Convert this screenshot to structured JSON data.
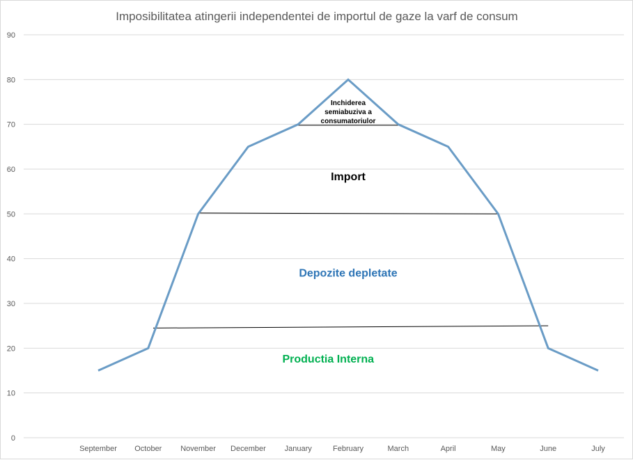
{
  "chart_data": {
    "type": "line",
    "title": "Imposibilitatea atingerii independentei de importul de gaze la varf de consum",
    "xlabel": "",
    "ylabel": "",
    "categories": [
      "September",
      "October",
      "November",
      "December",
      "January",
      "February",
      "March",
      "April",
      "May",
      "June",
      "July"
    ],
    "series": [
      {
        "values": [
          15,
          20,
          50,
          65,
          70,
          80,
          70,
          65,
          50,
          20,
          15
        ],
        "color": "#6a9cc6"
      }
    ],
    "ylim": [
      0,
      90
    ],
    "yticks": [
      0,
      10,
      20,
      30,
      40,
      50,
      60,
      70,
      80,
      90
    ],
    "grid": true,
    "reference_lines": [
      {
        "x0": 1.1,
        "y0": 24.5,
        "x1": 9.0,
        "y1": 25.0
      },
      {
        "x0": 2.0,
        "y0": 50.2,
        "x1": 8.0,
        "y1": 50.0
      },
      {
        "x0": 4.0,
        "y0": 69.8,
        "x1": 6.0,
        "y1": 69.8
      }
    ],
    "annotations": [
      {
        "lines": [
          "Inchiderea",
          "semiabuziva a",
          "consumatoriulor"
        ],
        "x": 5.0,
        "y": 74.3,
        "color": "#000000",
        "size": "small"
      },
      {
        "lines": [
          "Import"
        ],
        "x": 5.0,
        "y": 57.5,
        "color": "#000000",
        "size": "large"
      },
      {
        "lines": [
          "Depozite depletate"
        ],
        "x": 5.0,
        "y": 36.0,
        "color": "#2e75b6",
        "size": "large"
      },
      {
        "lines": [
          "Productia Interna"
        ],
        "x": 4.6,
        "y": 16.8,
        "color": "#00b050",
        "size": "large"
      }
    ]
  }
}
